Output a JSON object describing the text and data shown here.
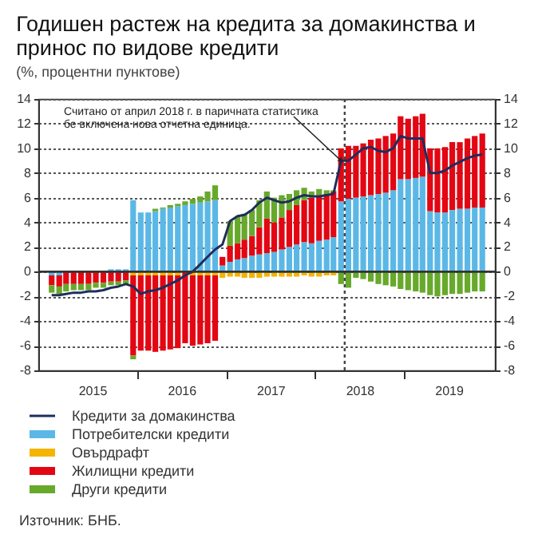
{
  "chart_data": {
    "type": "bar",
    "title": "Годишен растеж на кредита за домакинства и принос по видове кредити",
    "subtitle": "(%, процентни пунктове)",
    "x": [
      "2015-01",
      "2015-02",
      "2015-03",
      "2015-04",
      "2015-05",
      "2015-06",
      "2015-07",
      "2015-08",
      "2015-09",
      "2015-10",
      "2015-11",
      "2015-12",
      "2016-01",
      "2016-02",
      "2016-03",
      "2016-04",
      "2016-05",
      "2016-06",
      "2016-07",
      "2016-08",
      "2016-09",
      "2016-10",
      "2016-11",
      "2016-12",
      "2017-01",
      "2017-02",
      "2017-03",
      "2017-04",
      "2017-05",
      "2017-06",
      "2017-07",
      "2017-08",
      "2017-09",
      "2017-10",
      "2017-11",
      "2017-12",
      "2018-01",
      "2018-02",
      "2018-03",
      "2018-04",
      "2018-05",
      "2018-06",
      "2018-07",
      "2018-08",
      "2018-09",
      "2018-10",
      "2018-11",
      "2018-12",
      "2019-01",
      "2019-02",
      "2019-03",
      "2019-04",
      "2019-05",
      "2019-06",
      "2019-07",
      "2019-08",
      "2019-09",
      "2019-10",
      "2019-11"
    ],
    "series": [
      {
        "name": "Кредити за домакинства",
        "type": "line",
        "color": "#1f2d5c",
        "values": [
          -1.9,
          -1.9,
          -1.8,
          -1.7,
          -1.7,
          -1.6,
          -1.6,
          -1.5,
          -1.3,
          -1.2,
          -1.0,
          -1.2,
          -1.8,
          -1.6,
          -1.5,
          -1.3,
          -1.0,
          -0.7,
          -0.3,
          0.0,
          0.6,
          1.2,
          1.8,
          2.2,
          4.1,
          4.5,
          4.6,
          5.0,
          5.6,
          6.0,
          5.8,
          5.6,
          5.7,
          6.0,
          6.2,
          6.1,
          6.1,
          6.2,
          6.3,
          9.0,
          9.0,
          9.5,
          10.0,
          10.1,
          9.8,
          9.7,
          10.0,
          11.0,
          10.8,
          10.8,
          10.8,
          8.0,
          8.0,
          8.2,
          8.6,
          8.9,
          9.2,
          9.4,
          9.5
        ]
      },
      {
        "name": "Потребителски кредити",
        "color": "#5bb8e6",
        "values": [
          -0.3,
          -0.3,
          null,
          null,
          null,
          null,
          null,
          null,
          0.2,
          0.2,
          0.2,
          5.8,
          4.8,
          4.8,
          4.9,
          5.1,
          5.2,
          5.3,
          5.4,
          5.5,
          5.6,
          5.7,
          5.8,
          0.5,
          0.8,
          1.0,
          1.1,
          1.3,
          1.4,
          1.5,
          1.6,
          1.8,
          2.0,
          2.2,
          2.4,
          2.3,
          2.5,
          2.6,
          2.8,
          5.7,
          5.9,
          6.0,
          6.1,
          6.2,
          6.3,
          6.4,
          6.6,
          7.5,
          7.5,
          7.6,
          7.7,
          4.9,
          4.8,
          4.8,
          5.0,
          5.1,
          5.1,
          5.2,
          5.2
        ]
      },
      {
        "name": "Овърдрафт",
        "color": "#f5b400",
        "values": [
          null,
          null,
          null,
          null,
          null,
          null,
          null,
          null,
          null,
          null,
          null,
          -0.3,
          -0.3,
          -0.3,
          -0.3,
          -0.3,
          -0.3,
          -0.3,
          null,
          -0.3,
          -0.3,
          -0.3,
          -0.3,
          -0.5,
          -0.4,
          -0.4,
          -0.5,
          -0.5,
          -0.5,
          -0.4,
          -0.4,
          -0.4,
          -0.4,
          -0.4,
          -0.3,
          -0.4,
          -0.4,
          -0.3,
          -0.3,
          null,
          null,
          null,
          null,
          null,
          null,
          null,
          null,
          null,
          null,
          null,
          null,
          null,
          null,
          null,
          null,
          null,
          null,
          null,
          null
        ]
      },
      {
        "name": "Жилищни кредити",
        "color": "#e30613",
        "values": [
          -0.8,
          -0.9,
          -1.0,
          -1.0,
          -1.0,
          -1.0,
          -0.9,
          -0.9,
          -0.8,
          -0.8,
          -0.7,
          -6.5,
          -6.1,
          -6.1,
          -6.2,
          -6.1,
          -6.0,
          -5.9,
          -5.8,
          -5.7,
          -5.6,
          -5.5,
          -5.3,
          0.7,
          1.3,
          1.3,
          1.5,
          1.6,
          2.2,
          2.8,
          2.4,
          2.6,
          3.0,
          3.2,
          3.4,
          3.7,
          3.7,
          3.7,
          3.7,
          4.3,
          4.3,
          4.2,
          4.3,
          4.5,
          4.5,
          4.6,
          4.6,
          5.1,
          4.9,
          5.0,
          5.1,
          5.1,
          5.2,
          5.3,
          5.5,
          5.4,
          5.7,
          5.8,
          6.0
        ]
      },
      {
        "name": "Други кредити",
        "color": "#67a92b",
        "values": [
          -0.6,
          -0.6,
          -0.6,
          -0.5,
          -0.5,
          -0.5,
          -0.4,
          -0.4,
          -0.3,
          -0.3,
          -0.3,
          -0.3,
          null,
          null,
          0.2,
          0.1,
          0.2,
          0.2,
          0.3,
          0.4,
          0.5,
          0.8,
          1.2,
          null,
          2.0,
          2.2,
          2.1,
          2.1,
          2.2,
          2.2,
          2.0,
          1.8,
          1.3,
          1.2,
          1.0,
          0.5,
          0.5,
          0.3,
          0.1,
          -1.0,
          -1.3,
          -0.5,
          -0.6,
          -0.8,
          -1.0,
          -1.1,
          -1.2,
          -1.4,
          -1.5,
          -1.6,
          -1.7,
          -1.9,
          -2.0,
          -1.9,
          -1.8,
          -1.8,
          -1.7,
          -1.6,
          -1.6
        ]
      }
    ],
    "stacked": true,
    "xlim": [
      "2014-12-10",
      "2019-11-20"
    ],
    "xticks": [
      {
        "value": "2015-06-16",
        "label": "2015"
      },
      {
        "value": "2015-12-16",
        "label": null
      },
      {
        "value": "2016-06-16",
        "label": "2016"
      },
      {
        "value": "2016-12-16",
        "label": null
      },
      {
        "value": "2017-06-16",
        "label": "2017"
      },
      {
        "value": "2017-12-16",
        "label": null
      },
      {
        "value": "2018-06-16",
        "label": "2018"
      },
      {
        "value": "2018-12-16",
        "label": null
      },
      {
        "value": "2019-06-16",
        "label": "2019"
      }
    ],
    "ylim": [
      -8,
      14
    ],
    "yticks": [
      -8,
      -6,
      -4,
      -2,
      0,
      2,
      4,
      6,
      8,
      10,
      12,
      14
    ],
    "y2lim": [
      -8,
      14
    ],
    "y2ticks": [
      -8,
      -6,
      -4,
      -2,
      0,
      2,
      4,
      6,
      8,
      10,
      12,
      14
    ],
    "grid": "y",
    "legend": "bottom",
    "ref_lines": [
      {
        "axis": "y2",
        "value": 0,
        "color": "#333333"
      },
      {
        "axis": "x",
        "value": "2018-04-16",
        "color": "#444444",
        "line_style": "dotted"
      }
    ],
    "annotations": [
      {
        "text": "Считано от април 2018 г. в паричната статистика бе включена нова отчетна единица.",
        "x": "2018-04",
        "y": 9.0
      },
      "Източник: БНБ."
    ]
  }
}
